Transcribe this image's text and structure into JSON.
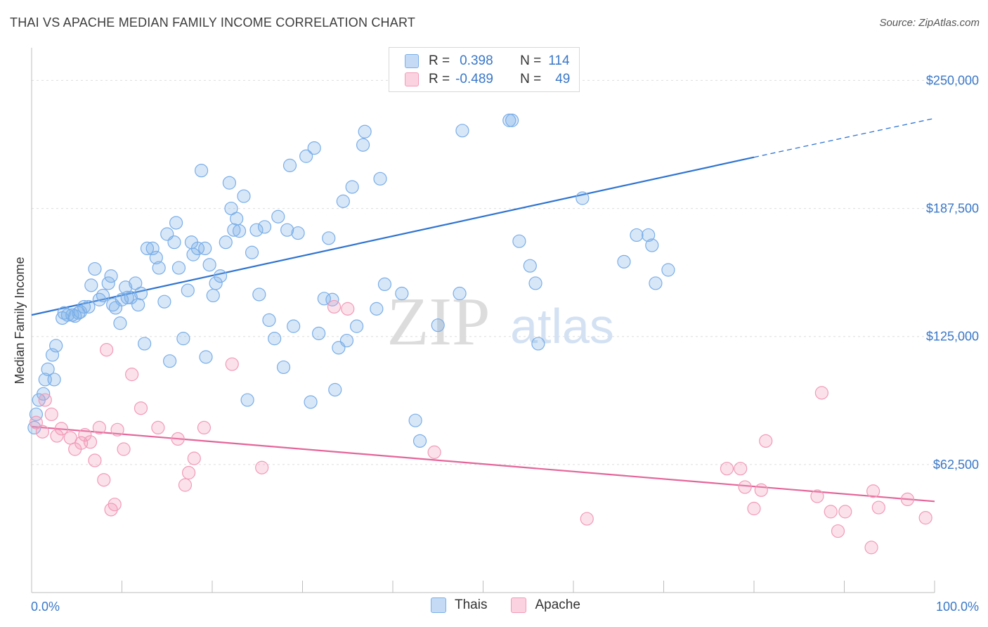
{
  "title": "THAI VS APACHE MEDIAN FAMILY INCOME CORRELATION CHART",
  "source": "Source: ZipAtlas.com",
  "watermark": {
    "zip": "ZIP",
    "atlas": "atlas"
  },
  "legend": {
    "rows": [
      {
        "r_label": "R =",
        "r_value": "0.398",
        "n_label": "N =",
        "n_value": "114",
        "color": "#7aaee8"
      },
      {
        "r_label": "R =",
        "r_value": "-0.489",
        "n_label": "N =",
        "n_value": "49",
        "color": "#f29ab8"
      }
    ]
  },
  "bottom_legend": [
    {
      "label": "Thais",
      "color": "#7aaee8"
    },
    {
      "label": "Apache",
      "color": "#f29ab8"
    }
  ],
  "chart_data": {
    "type": "scatter",
    "title": "THAI VS APACHE MEDIAN FAMILY INCOME CORRELATION CHART",
    "xlabel": "",
    "ylabel": "Median Family Income",
    "xlim": [
      0,
      100
    ],
    "ylim": [
      0,
      262500
    ],
    "x_tick_labels": [
      "0.0%",
      "100.0%"
    ],
    "y_ticks": [
      62500,
      125000,
      187500,
      250000
    ],
    "y_tick_labels": [
      "$62,500",
      "$125,000",
      "$187,500",
      "$250,000"
    ],
    "grid": true,
    "series": [
      {
        "name": "Thais",
        "color": "#7aaee8",
        "trend_color": "#2f74d0",
        "trend": {
          "x": [
            0,
            80
          ],
          "y": [
            135500,
            212500
          ],
          "extend_to_x": 100,
          "extend_y": 231500
        },
        "points": [
          [
            0.3,
            80500
          ],
          [
            0.5,
            87000
          ],
          [
            0.8,
            94000
          ],
          [
            1.3,
            97000
          ],
          [
            1.5,
            104000
          ],
          [
            1.8,
            109000
          ],
          [
            2.5,
            104000
          ],
          [
            2.3,
            116000
          ],
          [
            2.7,
            120500
          ],
          [
            3.4,
            134000
          ],
          [
            3.6,
            136500
          ],
          [
            4.0,
            135500
          ],
          [
            4.5,
            135500
          ],
          [
            4.8,
            135000
          ],
          [
            5.2,
            136500
          ],
          [
            5.4,
            137000
          ],
          [
            5.8,
            139500
          ],
          [
            6.3,
            139500
          ],
          [
            6.6,
            150000
          ],
          [
            7.0,
            158000
          ],
          [
            7.5,
            143000
          ],
          [
            7.9,
            145000
          ],
          [
            8.5,
            151000
          ],
          [
            8.8,
            154500
          ],
          [
            9.0,
            140500
          ],
          [
            9.3,
            139000
          ],
          [
            9.8,
            131500
          ],
          [
            10.0,
            143000
          ],
          [
            10.4,
            149000
          ],
          [
            10.6,
            144000
          ],
          [
            11.0,
            144000
          ],
          [
            11.5,
            151000
          ],
          [
            11.8,
            140500
          ],
          [
            12.1,
            146000
          ],
          [
            12.5,
            121500
          ],
          [
            12.8,
            168000
          ],
          [
            13.4,
            168000
          ],
          [
            13.8,
            163500
          ],
          [
            14.1,
            158500
          ],
          [
            14.7,
            142000
          ],
          [
            15.0,
            175000
          ],
          [
            15.3,
            113000
          ],
          [
            15.8,
            171000
          ],
          [
            16.0,
            180500
          ],
          [
            16.3,
            158500
          ],
          [
            16.8,
            124000
          ],
          [
            17.3,
            147500
          ],
          [
            17.7,
            171000
          ],
          [
            17.9,
            165000
          ],
          [
            18.4,
            168000
          ],
          [
            18.8,
            206000
          ],
          [
            19.2,
            168000
          ],
          [
            19.3,
            115000
          ],
          [
            19.7,
            160000
          ],
          [
            20.1,
            145000
          ],
          [
            20.4,
            151000
          ],
          [
            20.9,
            154500
          ],
          [
            21.5,
            171000
          ],
          [
            21.9,
            200000
          ],
          [
            22.1,
            187500
          ],
          [
            22.4,
            177000
          ],
          [
            22.7,
            182500
          ],
          [
            23.0,
            176500
          ],
          [
            23.5,
            193500
          ],
          [
            23.9,
            94000
          ],
          [
            24.4,
            166000
          ],
          [
            24.9,
            177000
          ],
          [
            25.2,
            145500
          ],
          [
            25.8,
            178500
          ],
          [
            26.3,
            133000
          ],
          [
            26.9,
            124000
          ],
          [
            27.3,
            183500
          ],
          [
            27.9,
            110000
          ],
          [
            28.3,
            177000
          ],
          [
            28.6,
            208500
          ],
          [
            29.0,
            130000
          ],
          [
            29.5,
            175500
          ],
          [
            30.4,
            213000
          ],
          [
            30.9,
            93000
          ],
          [
            31.3,
            217000
          ],
          [
            31.8,
            126500
          ],
          [
            32.4,
            143500
          ],
          [
            32.9,
            173000
          ],
          [
            33.3,
            143000
          ],
          [
            33.6,
            99000
          ],
          [
            34.0,
            119500
          ],
          [
            34.5,
            191000
          ],
          [
            34.9,
            123000
          ],
          [
            35.5,
            198000
          ],
          [
            36.0,
            130000
          ],
          [
            36.7,
            218500
          ],
          [
            36.9,
            225000
          ],
          [
            38.2,
            138500
          ],
          [
            38.6,
            202000
          ],
          [
            39.1,
            150500
          ],
          [
            41.0,
            146000
          ],
          [
            42.5,
            84000
          ],
          [
            43.0,
            74000
          ],
          [
            45.0,
            130500
          ],
          [
            47.4,
            146000
          ],
          [
            47.7,
            225500
          ],
          [
            52.9,
            230500
          ],
          [
            53.2,
            230500
          ],
          [
            54.0,
            171500
          ],
          [
            55.2,
            159500
          ],
          [
            55.8,
            151000
          ],
          [
            56.1,
            121500
          ],
          [
            61.0,
            192500
          ],
          [
            65.6,
            161500
          ],
          [
            67.0,
            174500
          ],
          [
            68.3,
            174500
          ],
          [
            68.7,
            169500
          ],
          [
            69.1,
            151000
          ],
          [
            70.5,
            157500
          ]
        ]
      },
      {
        "name": "Apache",
        "color": "#f29ab8",
        "trend_color": "#e4659a",
        "trend": {
          "x": [
            0,
            100
          ],
          "y": [
            81000,
            44500
          ]
        },
        "points": [
          [
            0.5,
            83000
          ],
          [
            1.2,
            78500
          ],
          [
            1.5,
            94000
          ],
          [
            2.2,
            87000
          ],
          [
            2.8,
            76500
          ],
          [
            3.3,
            80000
          ],
          [
            4.3,
            75500
          ],
          [
            4.8,
            70000
          ],
          [
            5.5,
            73000
          ],
          [
            5.9,
            77000
          ],
          [
            6.5,
            73500
          ],
          [
            7.0,
            64500
          ],
          [
            7.5,
            80500
          ],
          [
            8.0,
            55000
          ],
          [
            8.3,
            118500
          ],
          [
            8.8,
            40500
          ],
          [
            9.2,
            43000
          ],
          [
            9.5,
            79500
          ],
          [
            10.2,
            70000
          ],
          [
            11.1,
            106500
          ],
          [
            12.1,
            90000
          ],
          [
            14.0,
            80500
          ],
          [
            16.2,
            75000
          ],
          [
            17.0,
            52500
          ],
          [
            17.4,
            58500
          ],
          [
            18.0,
            65500
          ],
          [
            19.1,
            80500
          ],
          [
            22.2,
            111500
          ],
          [
            25.5,
            61000
          ],
          [
            33.5,
            139500
          ],
          [
            35.0,
            138500
          ],
          [
            44.6,
            68500
          ],
          [
            61.5,
            36000
          ],
          [
            77.0,
            60500
          ],
          [
            78.5,
            60500
          ],
          [
            79.0,
            51500
          ],
          [
            80.0,
            41000
          ],
          [
            80.8,
            50000
          ],
          [
            81.3,
            74000
          ],
          [
            87.0,
            47000
          ],
          [
            87.5,
            97500
          ],
          [
            88.5,
            39500
          ],
          [
            89.3,
            30000
          ],
          [
            90.1,
            39500
          ],
          [
            93.0,
            22000
          ],
          [
            93.2,
            49500
          ],
          [
            93.8,
            41500
          ],
          [
            97.0,
            45500
          ],
          [
            99.0,
            36500
          ]
        ]
      }
    ]
  }
}
